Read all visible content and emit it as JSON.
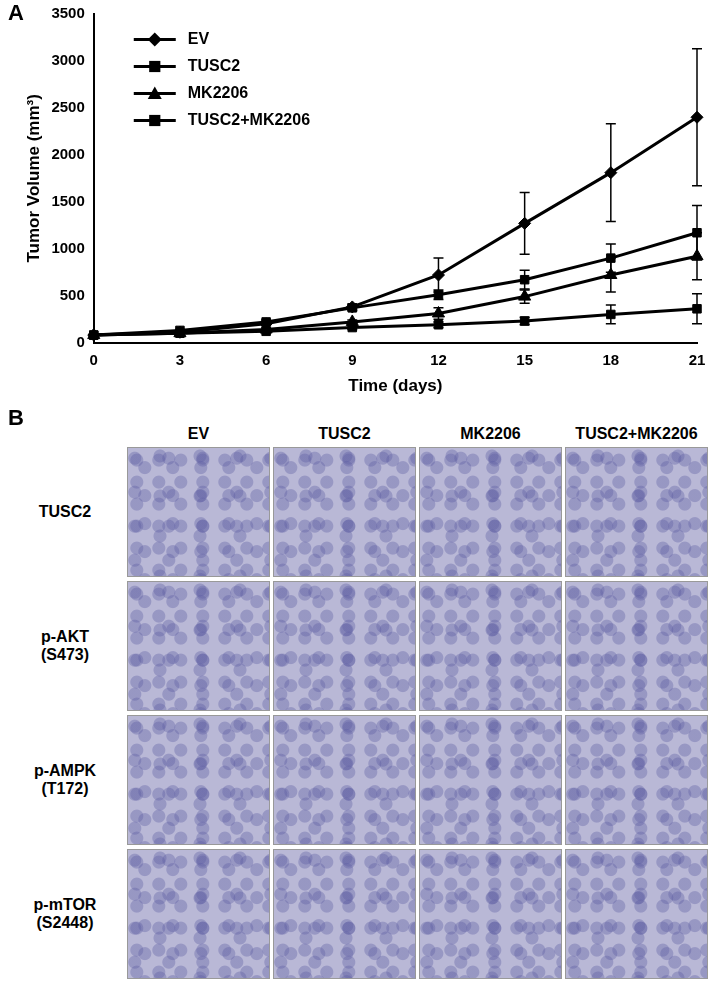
{
  "chart_data": {
    "type": "line",
    "xlabel": "Time (days)",
    "ylabel": "Tumor Volume (mm³)",
    "x": [
      0,
      3,
      6,
      9,
      12,
      15,
      18,
      21
    ],
    "series": [
      {
        "name": "EV",
        "color": "#000000",
        "marker": "diamond",
        "values": [
          80,
          110,
          200,
          380,
          720,
          1270,
          1810,
          2400
        ],
        "errors": [
          10,
          10,
          20,
          30,
          180,
          330,
          520,
          730
        ]
      },
      {
        "name": "TUSC2",
        "color": "#000000",
        "marker": "square",
        "values": [
          80,
          130,
          220,
          370,
          510,
          670,
          900,
          1170
        ],
        "errors": [
          10,
          10,
          20,
          30,
          50,
          100,
          150,
          290
        ]
      },
      {
        "name": "MK2206",
        "color": "#000000",
        "marker": "triangle",
        "values": [
          80,
          100,
          140,
          220,
          310,
          490,
          720,
          920
        ],
        "errors": [
          10,
          10,
          15,
          20,
          60,
          70,
          180,
          250
        ]
      },
      {
        "name": "TUSC2+MK2206",
        "color": "#000000",
        "marker": "square",
        "values": [
          80,
          100,
          120,
          160,
          190,
          230,
          300,
          360
        ],
        "errors": [
          10,
          10,
          15,
          20,
          30,
          40,
          100,
          160
        ]
      }
    ],
    "xlim": [
      0,
      21
    ],
    "xticks": [
      0,
      3,
      6,
      9,
      12,
      15,
      18,
      21
    ],
    "ylim": [
      0,
      3500
    ],
    "yticks": [
      0,
      500,
      1000,
      1500,
      2000,
      2500,
      3000,
      3500
    ],
    "grid": false,
    "legend": "upper left"
  },
  "panels": {
    "a": {
      "label": "A"
    },
    "b": {
      "label": "B",
      "columns": [
        "EV",
        "TUSC2",
        "MK2206",
        "TUSC2+MK2206"
      ],
      "rows": [
        [
          "TUSC2"
        ],
        [
          "p-AKT",
          "(S473)"
        ],
        [
          "p-AMPK",
          "(T172)"
        ],
        [
          "p-mTOR",
          "(S2448)"
        ]
      ]
    }
  }
}
